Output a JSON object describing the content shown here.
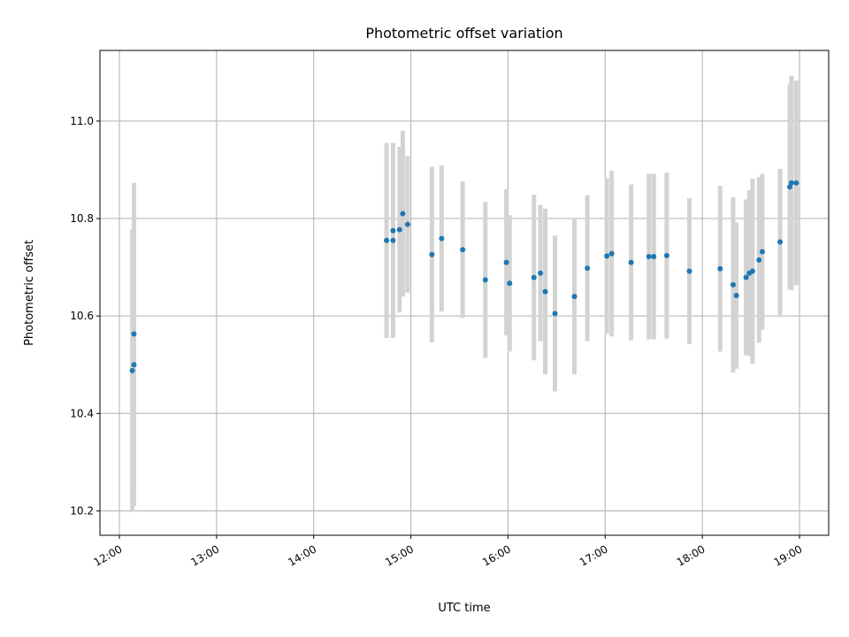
{
  "chart_data": {
    "type": "scatter",
    "title": "Photometric offset variation",
    "xlabel": "UTC time",
    "ylabel": "Photometric offset",
    "xlim_hours": [
      11.8,
      19.3
    ],
    "ylim": [
      10.15,
      11.145
    ],
    "x_ticks": [
      "12:00",
      "13:00",
      "14:00",
      "15:00",
      "16:00",
      "17:00",
      "18:00",
      "19:00"
    ],
    "y_ticks": [
      10.2,
      10.4,
      10.6,
      10.8,
      11.0
    ],
    "grid": true,
    "colors": {
      "points": "#1f77b4",
      "errorbars": "#d3d3d3",
      "grid": "#b0b0b0"
    },
    "points": [
      {
        "t": "12:08",
        "y": 10.488,
        "err": 0.29
      },
      {
        "t": "12:09",
        "y": 10.5,
        "err": 0.29
      },
      {
        "t": "12:09",
        "y": 10.563,
        "err": 0.31
      },
      {
        "t": "14:45",
        "y": 10.755,
        "err": 0.2
      },
      {
        "t": "14:49",
        "y": 10.755,
        "err": 0.2
      },
      {
        "t": "14:49",
        "y": 10.775,
        "err": 0.18
      },
      {
        "t": "14:53",
        "y": 10.777,
        "err": 0.17
      },
      {
        "t": "14:55",
        "y": 10.81,
        "err": 0.17
      },
      {
        "t": "14:58",
        "y": 10.788,
        "err": 0.14
      },
      {
        "t": "15:13",
        "y": 10.726,
        "err": 0.18
      },
      {
        "t": "15:19",
        "y": 10.759,
        "err": 0.15
      },
      {
        "t": "15:32",
        "y": 10.736,
        "err": 0.14
      },
      {
        "t": "15:46",
        "y": 10.674,
        "err": 0.16
      },
      {
        "t": "15:59",
        "y": 10.71,
        "err": 0.15
      },
      {
        "t": "16:01",
        "y": 10.667,
        "err": 0.14
      },
      {
        "t": "16:16",
        "y": 10.679,
        "err": 0.17
      },
      {
        "t": "16:20",
        "y": 10.688,
        "err": 0.14
      },
      {
        "t": "16:23",
        "y": 10.65,
        "err": 0.17
      },
      {
        "t": "16:29",
        "y": 10.605,
        "err": 0.16
      },
      {
        "t": "16:41",
        "y": 10.64,
        "err": 0.16
      },
      {
        "t": "16:49",
        "y": 10.698,
        "err": 0.15
      },
      {
        "t": "17:01",
        "y": 10.723,
        "err": 0.16
      },
      {
        "t": "17:04",
        "y": 10.728,
        "err": 0.17
      },
      {
        "t": "17:16",
        "y": 10.71,
        "err": 0.16
      },
      {
        "t": "17:27",
        "y": 10.722,
        "err": 0.17
      },
      {
        "t": "17:30",
        "y": 10.722,
        "err": 0.17
      },
      {
        "t": "17:38",
        "y": 10.724,
        "err": 0.17
      },
      {
        "t": "17:52",
        "y": 10.692,
        "err": 0.15
      },
      {
        "t": "18:11",
        "y": 10.697,
        "err": 0.17
      },
      {
        "t": "18:19",
        "y": 10.664,
        "err": 0.18
      },
      {
        "t": "18:21",
        "y": 10.642,
        "err": 0.15
      },
      {
        "t": "18:27",
        "y": 10.679,
        "err": 0.16
      },
      {
        "t": "18:29",
        "y": 10.688,
        "err": 0.17
      },
      {
        "t": "18:31",
        "y": 10.692,
        "err": 0.19
      },
      {
        "t": "18:35",
        "y": 10.715,
        "err": 0.17
      },
      {
        "t": "18:37",
        "y": 10.732,
        "err": 0.16
      },
      {
        "t": "18:48",
        "y": 10.752,
        "err": 0.15
      },
      {
        "t": "18:54",
        "y": 10.865,
        "err": 0.21
      },
      {
        "t": "18:55",
        "y": 10.873,
        "err": 0.22
      },
      {
        "t": "18:58",
        "y": 10.873,
        "err": 0.21
      }
    ]
  }
}
